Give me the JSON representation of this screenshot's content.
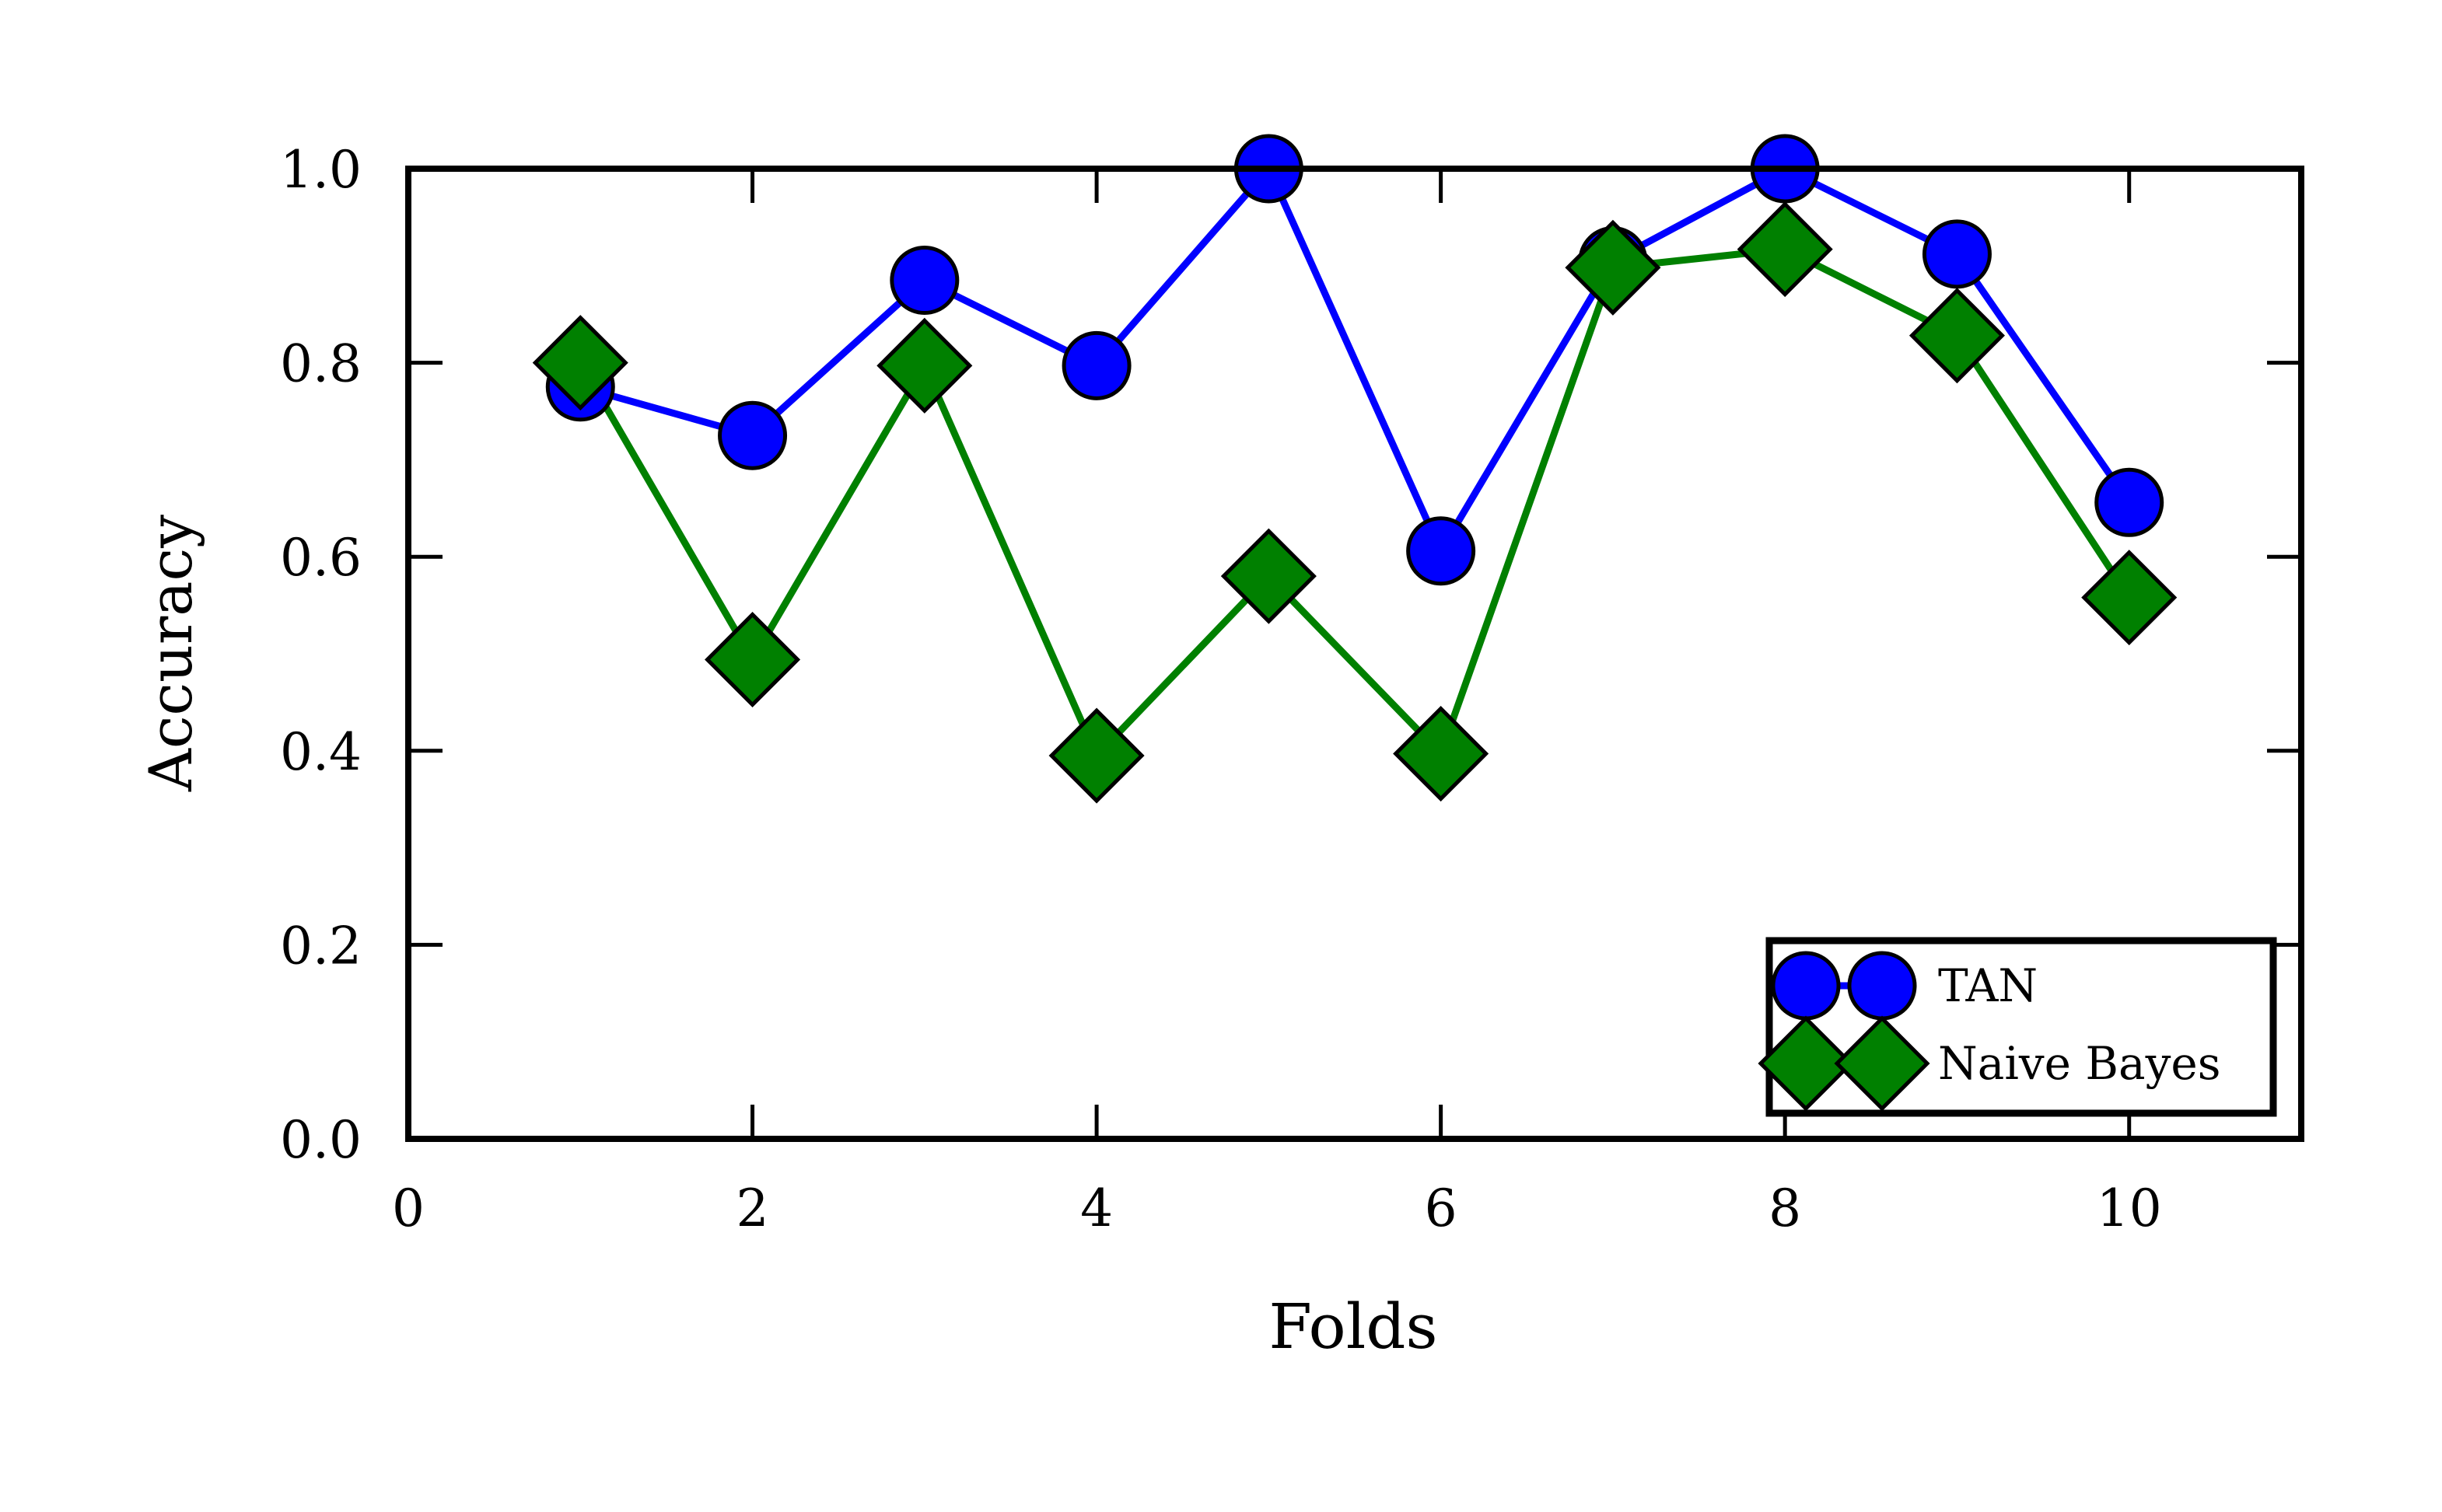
{
  "chart_data": {
    "type": "line",
    "title": "",
    "xlabel": "Folds",
    "ylabel": "Accuracy",
    "xlim": [
      0,
      11
    ],
    "ylim": [
      0.0,
      1.0
    ],
    "xticks": [
      0,
      2,
      4,
      6,
      8,
      10
    ],
    "xtick_labels": [
      "0",
      "2",
      "4",
      "6",
      "8",
      "10"
    ],
    "yticks": [
      0.0,
      0.2,
      0.4,
      0.6,
      0.8,
      1.0
    ],
    "ytick_labels": [
      "0.0",
      "0.2",
      "0.4",
      "0.6",
      "0.8",
      "1.0"
    ],
    "grid": false,
    "legend_position": "lower-right",
    "x": [
      1,
      2,
      3,
      4,
      5,
      6,
      7,
      8,
      9,
      10
    ],
    "series": [
      {
        "name": "TAN",
        "marker": "circle",
        "color": "#0000ff",
        "values": [
          0.775,
          0.725,
          0.885,
          0.797,
          1.0,
          0.606,
          0.905,
          1.0,
          0.912,
          0.656
        ]
      },
      {
        "name": "Naive Bayes",
        "marker": "diamond",
        "color": "#008000",
        "values": [
          0.8,
          0.494,
          0.797,
          0.395,
          0.58,
          0.397,
          0.898,
          0.917,
          0.828,
          0.558
        ]
      }
    ]
  }
}
